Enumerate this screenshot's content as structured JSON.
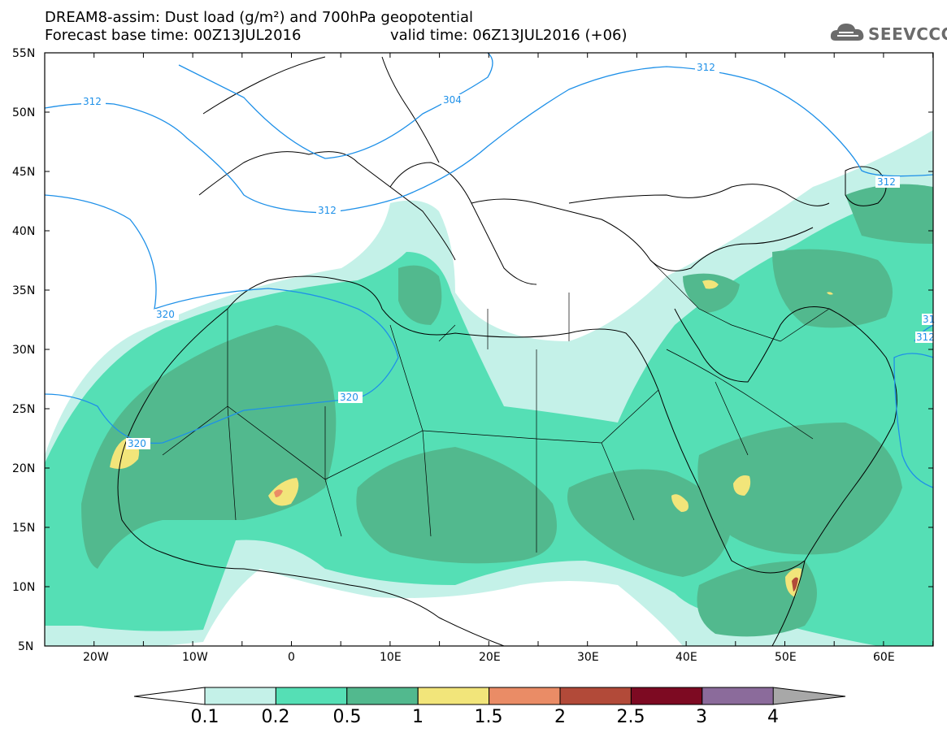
{
  "title": {
    "line1": "DREAM8-assim: Dust load (g/m²) and 700hPa geopotential",
    "line2": "Forecast base time: 00Z13JUL2016",
    "line2b": "valid time: 06Z13JUL2016 (+06)"
  },
  "logo": {
    "text": "SEEVCCC",
    "icon": "cloud-icon"
  },
  "axes": {
    "lat_labels": [
      "55N",
      "50N",
      "45N",
      "40N",
      "35N",
      "30N",
      "25N",
      "20N",
      "15N",
      "10N",
      "5N"
    ],
    "lon_labels": [
      "20W",
      "10W",
      "0",
      "10E",
      "20E",
      "30E",
      "40E",
      "50E",
      "60E"
    ]
  },
  "contours": {
    "color": "#1e90e8",
    "labels": [
      "312",
      "304",
      "312",
      "312",
      "320",
      "320",
      "320",
      "312",
      "312",
      "31"
    ]
  },
  "colorbar": {
    "labels": [
      "0.1",
      "0.2",
      "0.5",
      "1",
      "1.5",
      "2",
      "2.5",
      "3",
      "4"
    ],
    "colors": [
      "#c4f1e8",
      "#55dfb5",
      "#52b98e",
      "#f2e57a",
      "#ea8c66",
      "#b24a39",
      "#7d0a22",
      "#8b6b9b",
      "#a8a8a8"
    ]
  }
}
